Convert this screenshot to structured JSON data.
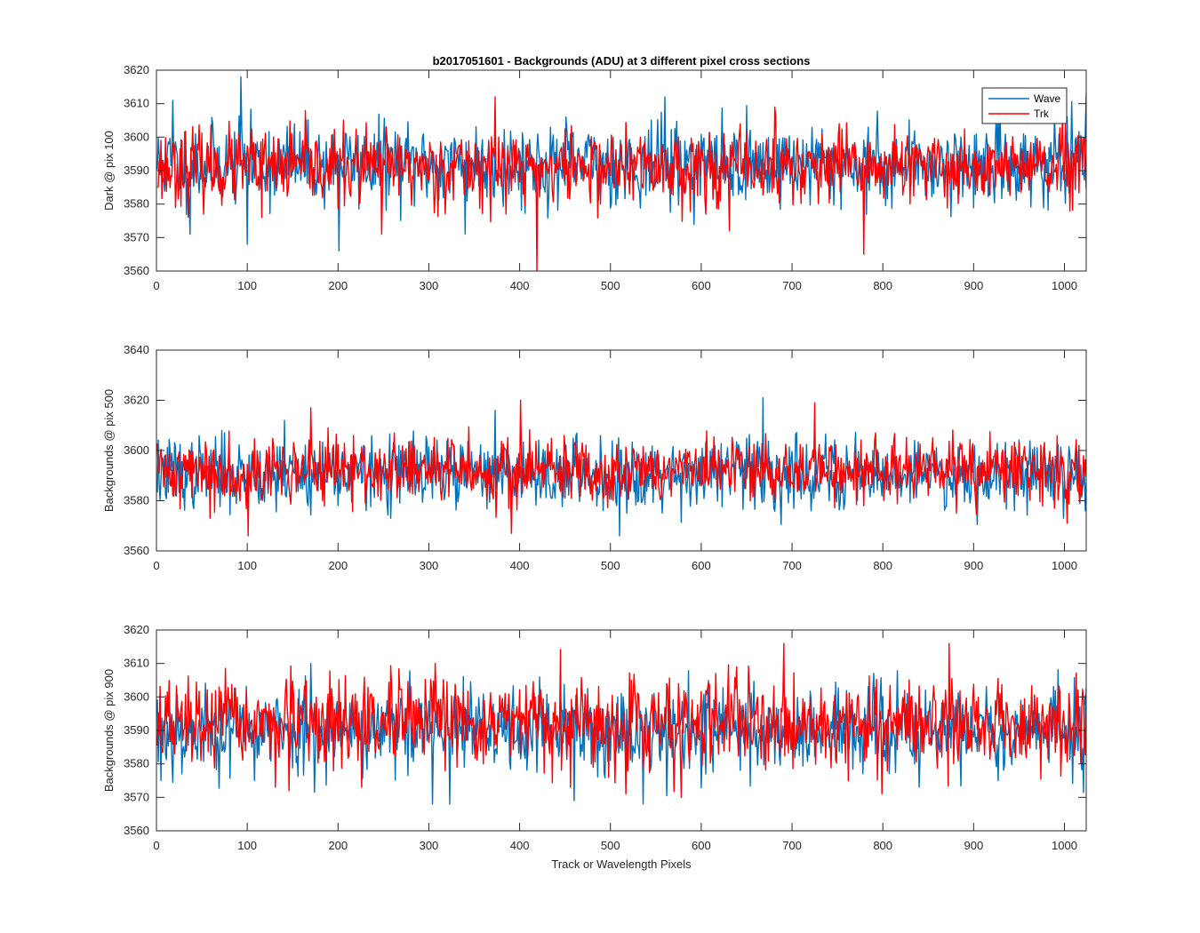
{
  "title": "b2017051601 - Backgrounds (ADU) at 3 different pixel cross sections",
  "xlabel": "Track or Wavelength Pixels",
  "legend": {
    "entries": [
      "Wave",
      "Trk"
    ],
    "location": "top-right"
  },
  "colors": {
    "wave": "#0072BD",
    "trk": "#FF0000",
    "axis": "#262626"
  },
  "chart_data": [
    {
      "type": "line",
      "ylabel": "Dark @ pix 100",
      "xlim": [
        0,
        1024
      ],
      "ylim": [
        3560,
        3620
      ],
      "xticks": [
        0,
        100,
        200,
        300,
        400,
        500,
        600,
        700,
        800,
        900,
        1000
      ],
      "yticks": [
        3560,
        3570,
        3580,
        3590,
        3600,
        3610,
        3620
      ],
      "n_points": 1024,
      "series": [
        {
          "name": "Wave",
          "mean": 3592,
          "spread": 6,
          "seed": 11,
          "spikes": [
            [
              92,
              3618
            ],
            [
              200,
              3566
            ],
            [
              99,
              3568
            ],
            [
              339,
              3571
            ],
            [
              559,
              3612
            ],
            [
              1023,
              3613
            ],
            [
              36,
              3571
            ],
            [
              17,
              3611
            ]
          ]
        },
        {
          "name": "Trk",
          "mean": 3591,
          "spread": 5.5,
          "seed": 23,
          "spikes": [
            [
              418,
              3560
            ],
            [
              778,
              3565
            ],
            [
              247,
              3571
            ],
            [
              372,
              3612
            ],
            [
              115,
              3576
            ],
            [
              630,
              3572
            ],
            [
              680,
              3609
            ]
          ]
        }
      ]
    },
    {
      "type": "line",
      "ylabel": "Backgrounds @ pix 500",
      "xlim": [
        0,
        1024
      ],
      "ylim": [
        3560,
        3640
      ],
      "xticks": [
        0,
        100,
        200,
        300,
        400,
        500,
        600,
        700,
        800,
        900,
        1000
      ],
      "yticks": [
        3560,
        3580,
        3600,
        3620,
        3640
      ],
      "n_points": 1024,
      "series": [
        {
          "name": "Wave",
          "mean": 3591,
          "spread": 7,
          "seed": 37,
          "spikes": [
            [
              372,
              3616
            ],
            [
              667,
              3621
            ],
            [
              509,
              3566
            ],
            [
              140,
              3612
            ],
            [
              1022,
              3576
            ],
            [
              257,
              3573
            ]
          ]
        },
        {
          "name": "Trk",
          "mean": 3592,
          "spread": 6.5,
          "seed": 41,
          "spikes": [
            [
              100,
              3566
            ],
            [
              169,
              3617
            ],
            [
              400,
              3620
            ],
            [
              724,
              3619
            ],
            [
              390,
              3567
            ],
            [
              1002,
              3571
            ],
            [
              58,
              3573
            ]
          ]
        }
      ]
    },
    {
      "type": "line",
      "ylabel": "Backgrounds @ pix 900",
      "xlim": [
        0,
        1024
      ],
      "ylim": [
        3560,
        3620
      ],
      "xticks": [
        0,
        100,
        200,
        300,
        400,
        500,
        600,
        700,
        800,
        900,
        1000
      ],
      "yticks": [
        3560,
        3570,
        3580,
        3590,
        3600,
        3610,
        3620
      ],
      "n_points": 1024,
      "series": [
        {
          "name": "Wave",
          "mean": 3590,
          "spread": 6.5,
          "seed": 53,
          "spikes": [
            [
              303,
              3568
            ],
            [
              322,
              3568
            ],
            [
              535,
              3568
            ],
            [
              459,
              3569
            ],
            [
              169,
              3610
            ],
            [
              4,
              3575
            ]
          ]
        },
        {
          "name": "Trk",
          "mean": 3592,
          "spread": 6.5,
          "seed": 67,
          "spikes": [
            [
              690,
              3616
            ],
            [
              872,
              3616
            ],
            [
              798,
              3571
            ],
            [
              516,
              3571
            ],
            [
              455,
              3573
            ],
            [
              145,
              3572
            ],
            [
              225,
              3573
            ]
          ]
        }
      ]
    }
  ]
}
